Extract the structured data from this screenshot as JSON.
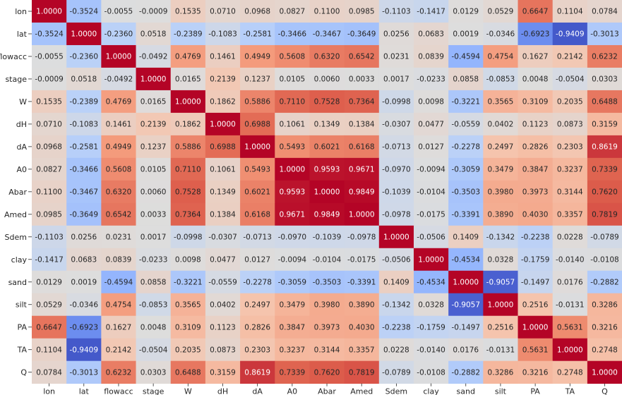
{
  "chart_data": {
    "type": "heatmap",
    "title": "",
    "xlabel": "",
    "ylabel": "",
    "colormap": "coolwarm",
    "vmin": -1,
    "vmax": 1,
    "value_format": "4 decimals",
    "labels": [
      "lon",
      "lat",
      "flowacc",
      "stage",
      "W",
      "dH",
      "dA",
      "A0",
      "Abar",
      "Amed",
      "Sdem",
      "clay",
      "sand",
      "silt",
      "PA",
      "TA",
      "Q"
    ],
    "matrix": [
      [
        1.0,
        -0.3524,
        -0.0055,
        -0.0009,
        0.1535,
        0.071,
        0.0968,
        0.0827,
        0.11,
        0.0985,
        -0.1103,
        -0.1417,
        0.0129,
        0.0529,
        0.6647,
        0.1104,
        0.0784
      ],
      [
        -0.3524,
        1.0,
        -0.236,
        0.0518,
        -0.2389,
        -0.1083,
        -0.2581,
        -0.3466,
        -0.3467,
        -0.3649,
        0.0256,
        0.0683,
        0.0019,
        -0.0346,
        -0.6923,
        -0.9409,
        -0.3013
      ],
      [
        -0.0055,
        -0.236,
        1.0,
        -0.0492,
        0.4769,
        0.1461,
        0.4949,
        0.5608,
        0.632,
        0.6542,
        0.0231,
        0.0839,
        -0.4594,
        0.4754,
        0.1627,
        0.2142,
        0.6232
      ],
      [
        -0.0009,
        0.0518,
        -0.0492,
        1.0,
        0.0165,
        0.2139,
        0.1237,
        0.0105,
        0.006,
        0.0033,
        0.0017,
        -0.0233,
        0.0858,
        -0.0853,
        0.0048,
        -0.0504,
        0.0303
      ],
      [
        0.1535,
        -0.2389,
        0.4769,
        0.0165,
        1.0,
        0.1862,
        0.5886,
        0.711,
        0.7528,
        0.7364,
        -0.0998,
        0.0098,
        -0.3221,
        0.3565,
        0.3109,
        0.2035,
        0.6488
      ],
      [
        0.071,
        -0.1083,
        0.1461,
        0.2139,
        0.1862,
        1.0,
        0.6988,
        0.1061,
        0.1349,
        0.1384,
        -0.0307,
        0.0477,
        -0.0559,
        0.0402,
        0.1123,
        0.0873,
        0.3159
      ],
      [
        0.0968,
        -0.2581,
        0.4949,
        0.1237,
        0.5886,
        0.6988,
        1.0,
        0.5493,
        0.6021,
        0.6168,
        -0.0713,
        0.0127,
        -0.2278,
        0.2497,
        0.2826,
        0.2303,
        0.8619
      ],
      [
        0.0827,
        -0.3466,
        0.5608,
        0.0105,
        0.711,
        0.1061,
        0.5493,
        1.0,
        0.9593,
        0.9671,
        -0.097,
        -0.0094,
        -0.3059,
        0.3479,
        0.3847,
        0.3237,
        0.7339
      ],
      [
        0.11,
        -0.3467,
        0.632,
        0.006,
        0.7528,
        0.1349,
        0.6021,
        0.9593,
        1.0,
        0.9849,
        -0.1039,
        -0.0104,
        -0.3503,
        0.398,
        0.3973,
        0.3144,
        0.762
      ],
      [
        0.0985,
        -0.3649,
        0.6542,
        0.0033,
        0.7364,
        0.1384,
        0.6168,
        0.9671,
        0.9849,
        1.0,
        -0.0978,
        -0.0175,
        -0.3391,
        0.389,
        0.403,
        0.3357,
        0.7819
      ],
      [
        -0.1103,
        0.0256,
        0.0231,
        0.0017,
        -0.0998,
        -0.0307,
        -0.0713,
        -0.097,
        -0.1039,
        -0.0978,
        1.0,
        -0.0506,
        0.1409,
        -0.1342,
        -0.2238,
        0.0228,
        -0.0789
      ],
      [
        -0.1417,
        0.0683,
        0.0839,
        -0.0233,
        0.0098,
        0.0477,
        0.0127,
        -0.0094,
        -0.0104,
        -0.0175,
        -0.0506,
        1.0,
        -0.4534,
        0.0328,
        -0.1759,
        -0.014,
        -0.0108
      ],
      [
        0.0129,
        0.0019,
        -0.4594,
        0.0858,
        -0.3221,
        -0.0559,
        -0.2278,
        -0.3059,
        -0.3503,
        -0.3391,
        0.1409,
        -0.4534,
        1.0,
        -0.9057,
        -0.1497,
        0.0176,
        -0.2882
      ],
      [
        0.0529,
        -0.0346,
        0.4754,
        -0.0853,
        0.3565,
        0.0402,
        0.2497,
        0.3479,
        0.398,
        0.389,
        -0.1342,
        0.0328,
        -0.9057,
        1.0,
        0.2516,
        -0.0131,
        0.3286
      ],
      [
        0.6647,
        -0.6923,
        0.1627,
        0.0048,
        0.3109,
        0.1123,
        0.2826,
        0.3847,
        0.3973,
        0.403,
        -0.2238,
        -0.1759,
        -0.1497,
        0.2516,
        1.0,
        0.5631,
        0.3216
      ],
      [
        0.1104,
        -0.9409,
        0.2142,
        -0.0504,
        0.2035,
        0.0873,
        0.2303,
        0.3237,
        0.3144,
        0.3357,
        0.0228,
        -0.014,
        0.0176,
        -0.0131,
        0.5631,
        1.0,
        0.2748
      ],
      [
        0.0784,
        -0.3013,
        0.6232,
        0.0303,
        0.6488,
        0.3159,
        0.8619,
        0.7339,
        0.762,
        0.7819,
        -0.0789,
        -0.0108,
        -0.2882,
        0.3286,
        0.3216,
        0.2748,
        1.0
      ]
    ],
    "grid": false,
    "legend": "none"
  }
}
